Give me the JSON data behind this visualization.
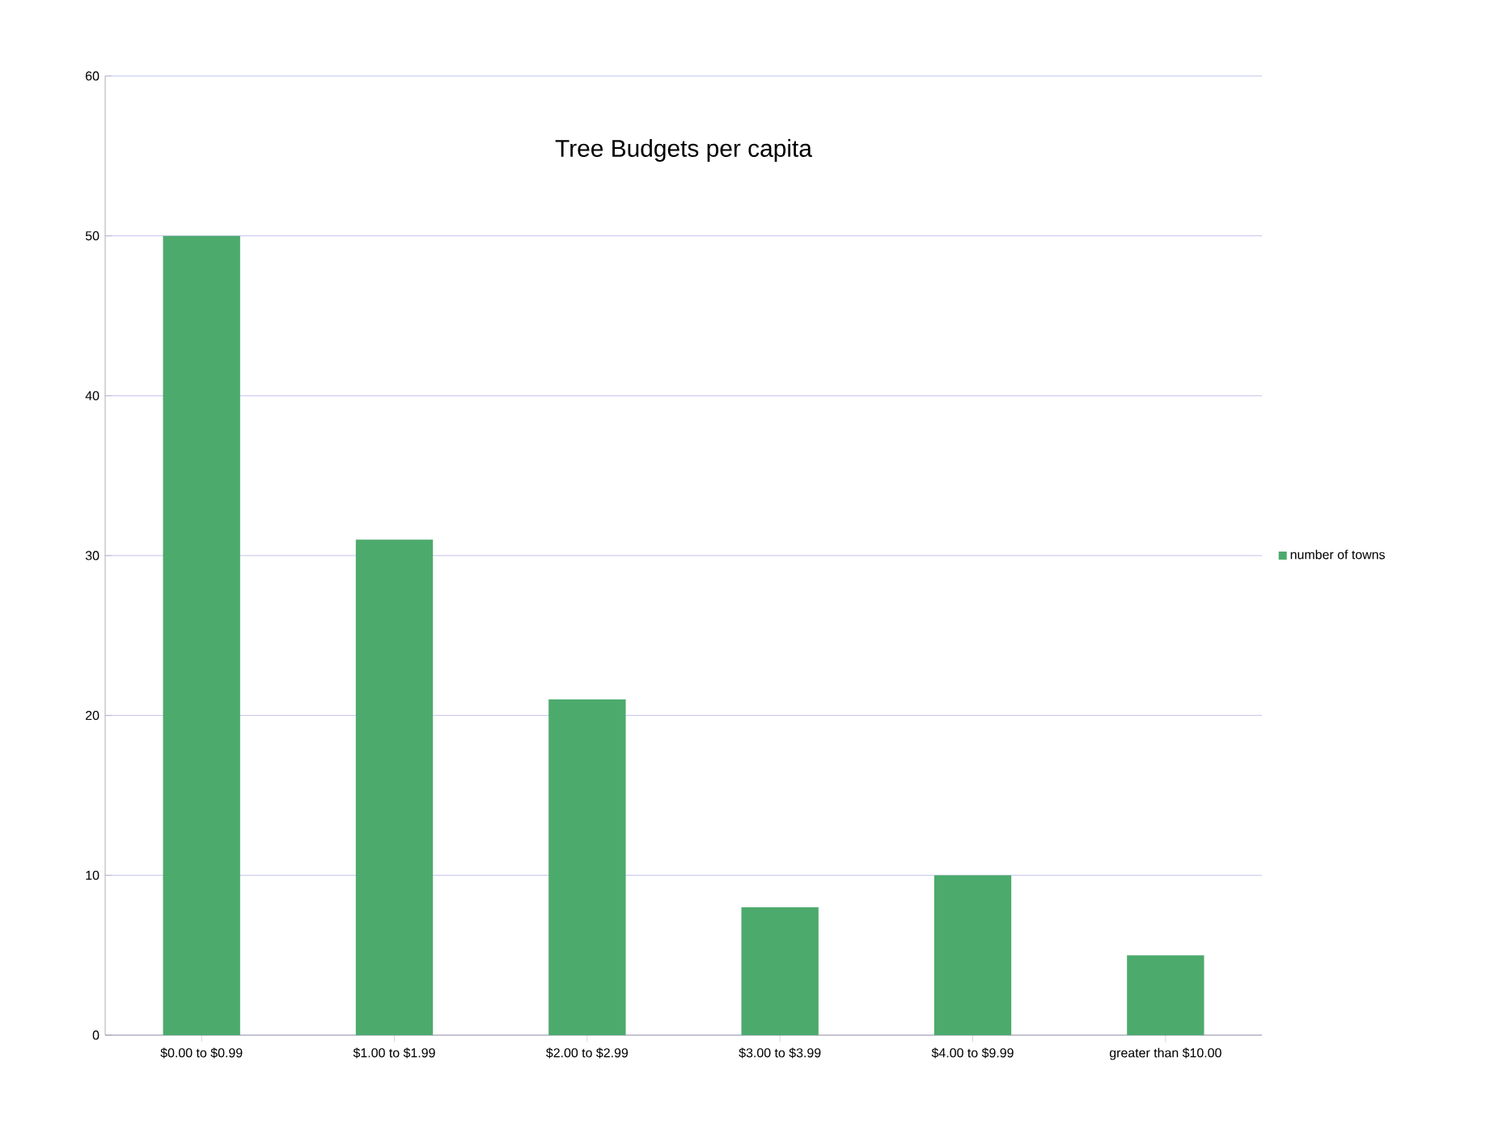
{
  "chart_data": {
    "type": "bar",
    "title": "Tree Budgets per capita",
    "categories": [
      "$0.00 to $0.99",
      "$1.00 to $1.99",
      "$2.00 to $2.99",
      "$3.00 to $3.99",
      "$4.00 to $9.99",
      "greater than $10.00"
    ],
    "series": [
      {
        "name": "number of towns",
        "color": "#4caa6c",
        "values": [
          50,
          31,
          21,
          8,
          10,
          5
        ]
      }
    ],
    "ylim": [
      0,
      60
    ],
    "yticks": [
      0,
      10,
      20,
      30,
      40,
      50,
      60
    ],
    "grid": "y",
    "legend": "right"
  }
}
